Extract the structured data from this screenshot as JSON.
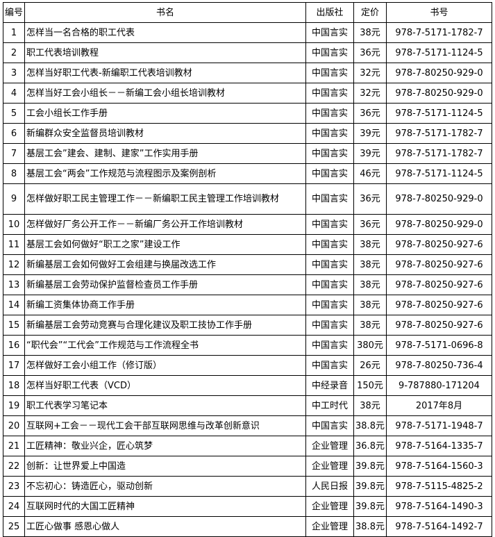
{
  "headers": [
    "编号",
    "书名",
    "出版社",
    "定价",
    "书号"
  ],
  "rows": [
    [
      "1",
      "怎样当一名合格的职工代表",
      "中国言实",
      "38元",
      "978-7-5171-1782-7"
    ],
    [
      "2",
      "职工代表培训教程",
      "中国言实",
      "36元",
      "978-7-5171-1124-5"
    ],
    [
      "3",
      "怎样当好职工代表-新编职工代表培训教材",
      "中国言实",
      "32元",
      "978-7-80250-929-0"
    ],
    [
      "4",
      "怎样当好工会小组长－－新编工会小组长培训教材",
      "中国言实",
      "32元",
      "978-7-80250-929-0"
    ],
    [
      "5",
      "工会小组长工作手册",
      "中国言实",
      "36元",
      "978-7-5171-1124-5"
    ],
    [
      "6",
      "新编群众安全监督员培训教材",
      "中国言实",
      "39元",
      "978-7-5171-1782-7"
    ],
    [
      "7",
      "基层工会”建会、建制、建家”工作实用手册",
      "中国言实",
      "39元",
      "978-7-5171-1782-7"
    ],
    [
      "8",
      "基层工会“两会”工作规范与流程图示及案例剖析",
      "中国言实",
      "46元",
      "978-7-5171-1124-5"
    ],
    [
      "9",
      "怎样做好职工民主管理工作－－新编职工民主管理工作培训教材",
      "中国言实",
      "36元",
      "978-7-80250-929-0"
    ],
    [
      "10",
      "怎样做好厂务公开工作－－新编厂务公开工作培训教材",
      "中国言实",
      "36元",
      "978-7-80250-929-0"
    ],
    [
      "11",
      "基层工会如何做好“职工之家”建设工作",
      "中国言实",
      "38元",
      "978-7-80250-927-6"
    ],
    [
      "12",
      "新编基层工会如何做好工会组建与换届改选工作",
      "中国言实",
      "38元",
      "978-7-80250-927-6"
    ],
    [
      "13",
      "新编基层工会劳动保护监督检查员工作手册",
      "中国言实",
      "38元",
      "978-7-80250-927-6"
    ],
    [
      "14",
      "新编工资集体协商工作手册",
      "中国言实",
      "38元",
      "978-7-80250-927-6"
    ],
    [
      "15",
      "新编基层工会劳动竞赛与合理化建议及职工技协工作手册",
      "中国言实",
      "38元",
      "978-7-80250-927-6"
    ],
    [
      "16",
      "“职代会”“工代会”工作规范与工作流程全书",
      "中国言实",
      "380元",
      "978-7-5171-0696-8"
    ],
    [
      "17",
      "怎样做好工会小组工作（修订版）",
      "中国言实",
      "26元",
      "978-7-80250-736-4"
    ],
    [
      "18",
      "怎样当好职工代表（VCD）",
      "中经录音",
      "150元",
      "9-787880-171204"
    ],
    [
      "19",
      "职工代表学习笔记本",
      "中工时代",
      "38元",
      "2017年8月"
    ],
    [
      "20",
      "互联网+工会－－现代工会干部互联网思维与改革创新意识",
      "中国言实",
      "38.8元",
      "978-7-5171-1948-7"
    ],
    [
      "21",
      "工匠精神：敬业兴企，匠心筑梦",
      "企业管理",
      "36.8元",
      "978-7-5164-1335-7"
    ],
    [
      "22",
      "创新：让世界爱上中国造",
      "企业管理",
      "39.8元",
      "978-7-5164-1560-3"
    ],
    [
      "23",
      "不忘初心：铸造匠心，驱动创新",
      "人民日报",
      "39.8元",
      "978-7-5115-4825-2"
    ],
    [
      "24",
      "互联网时代的大国工匠精神",
      "企业管理",
      "39.8元",
      "978-7-5164-1490-3"
    ],
    [
      "25",
      "工匠心做事 感恩心做人",
      "企业管理",
      "38.8元",
      "978-7-5164-1492-7"
    ]
  ]
}
